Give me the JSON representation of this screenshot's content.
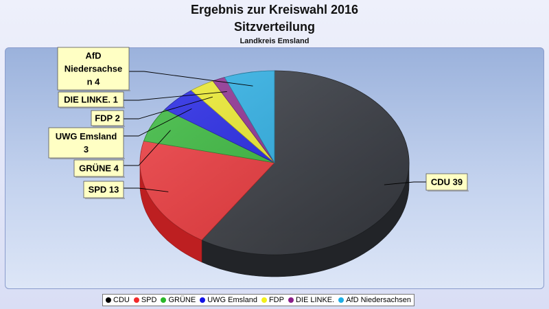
{
  "chart_data": {
    "type": "pie",
    "title": "Ergebnis zur Kreiswahl 2016",
    "subtitle": "Sitzverteilung",
    "subsubtitle": "Landkreis Emsland",
    "slices": [
      {
        "name": "CDU",
        "value": 39,
        "label": "CDU 39",
        "color": "#2b2e33"
      },
      {
        "name": "SPD",
        "value": 13,
        "label": "SPD 13",
        "color": "#f2282a"
      },
      {
        "name": "GRÜNE",
        "value": 4,
        "label": "GRÜNE 4",
        "color": "#2ab72a"
      },
      {
        "name": "UWG Emsland",
        "value": 3,
        "label": "UWG Emsland 3",
        "color": "#1212e6"
      },
      {
        "name": "FDP",
        "value": 2,
        "label": "FDP 2",
        "color": "#f3f01a"
      },
      {
        "name": "DIE LINKE.",
        "value": 1,
        "label": "DIE LINKE. 1",
        "color": "#8a1f8a"
      },
      {
        "name": "AfD Niedersachsen",
        "value": 4,
        "label": "AfD Niedersachsen 4",
        "color": "#1eaee6"
      }
    ],
    "legend_position": "bottom"
  }
}
